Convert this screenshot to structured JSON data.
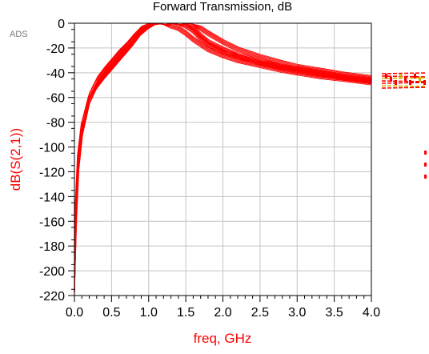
{
  "app_badge": "ADS",
  "chart_data": {
    "type": "line",
    "title": "Forward Transmission, dB",
    "xlabel": "freq, GHz",
    "ylabel": "dB(S(2,1))",
    "xlim": [
      0.0,
      4.0
    ],
    "ylim": [
      -220,
      0
    ],
    "x_ticks": [
      "0.0",
      "0.5",
      "1.0",
      "1.5",
      "2.0",
      "2.5",
      "3.0",
      "3.5",
      "4.0"
    ],
    "y_ticks": [
      "0",
      "-20",
      "-40",
      "-60",
      "-80",
      "-100",
      "-120",
      "-140",
      "-160",
      "-180",
      "-200",
      "-220"
    ],
    "grid": true,
    "trace_color": "#ff0000",
    "series": [
      {
        "x": [
          0.0,
          0.02,
          0.05,
          0.1,
          0.2,
          0.3,
          0.4,
          0.5,
          0.6,
          0.7,
          0.8,
          0.9,
          1.0,
          1.1,
          1.2,
          1.3,
          1.4,
          1.5,
          1.6,
          1.7,
          1.8,
          2.0,
          2.2,
          2.5,
          2.8,
          3.0,
          3.3,
          3.6,
          4.0
        ],
        "values": [
          -220,
          -150,
          -110,
          -85,
          -60,
          -48,
          -40,
          -33,
          -26,
          -20,
          -13,
          -6,
          -1,
          0,
          0,
          0,
          -1,
          -1,
          -4,
          -10,
          -15,
          -21,
          -26,
          -31,
          -35,
          -37,
          -40,
          -43,
          -46
        ]
      },
      {
        "x": [
          0.0,
          0.02,
          0.05,
          0.1,
          0.2,
          0.3,
          0.4,
          0.5,
          0.6,
          0.7,
          0.8,
          0.9,
          1.0,
          1.1,
          1.2,
          1.3,
          1.4,
          1.5,
          1.6,
          1.7,
          1.8,
          2.0,
          2.2,
          2.5,
          2.8,
          3.0,
          3.3,
          3.6,
          4.0
        ],
        "values": [
          -220,
          -160,
          -120,
          -92,
          -65,
          -52,
          -44,
          -37,
          -30,
          -23,
          -16,
          -8,
          -3,
          -1,
          0,
          0,
          0,
          0,
          -1,
          -4,
          -8,
          -15,
          -21,
          -27,
          -32,
          -35,
          -38,
          -41,
          -44
        ]
      },
      {
        "x": [
          0.0,
          0.02,
          0.05,
          0.1,
          0.2,
          0.3,
          0.4,
          0.5,
          0.6,
          0.7,
          0.8,
          0.9,
          1.0,
          1.1,
          1.2,
          1.3,
          1.4,
          1.5,
          1.6,
          1.7,
          1.8,
          2.0,
          2.2,
          2.5,
          2.8,
          3.0,
          3.3,
          3.6,
          4.0
        ],
        "values": [
          -220,
          -145,
          -105,
          -80,
          -57,
          -45,
          -37,
          -30,
          -23,
          -17,
          -10,
          -4,
          0,
          0,
          -1,
          -2,
          -4,
          -8,
          -13,
          -17,
          -21,
          -26,
          -30,
          -34,
          -38,
          -40,
          -43,
          -45,
          -48
        ]
      },
      {
        "x": [
          0.0,
          0.02,
          0.05,
          0.1,
          0.2,
          0.3,
          0.4,
          0.5,
          0.6,
          0.7,
          0.8,
          0.9,
          1.0,
          1.1,
          1.2,
          1.3,
          1.4,
          1.5,
          1.6,
          1.7,
          1.8,
          2.0,
          2.2,
          2.5,
          2.8,
          3.0,
          3.3,
          3.6,
          4.0
        ],
        "values": [
          -220,
          -155,
          -115,
          -88,
          -62,
          -50,
          -42,
          -35,
          -28,
          -21,
          -14,
          -7,
          -2,
          0,
          0,
          0,
          -1,
          -2,
          -6,
          -12,
          -17,
          -23,
          -27,
          -32,
          -36,
          -38,
          -41,
          -44,
          -47
        ]
      }
    ]
  }
}
